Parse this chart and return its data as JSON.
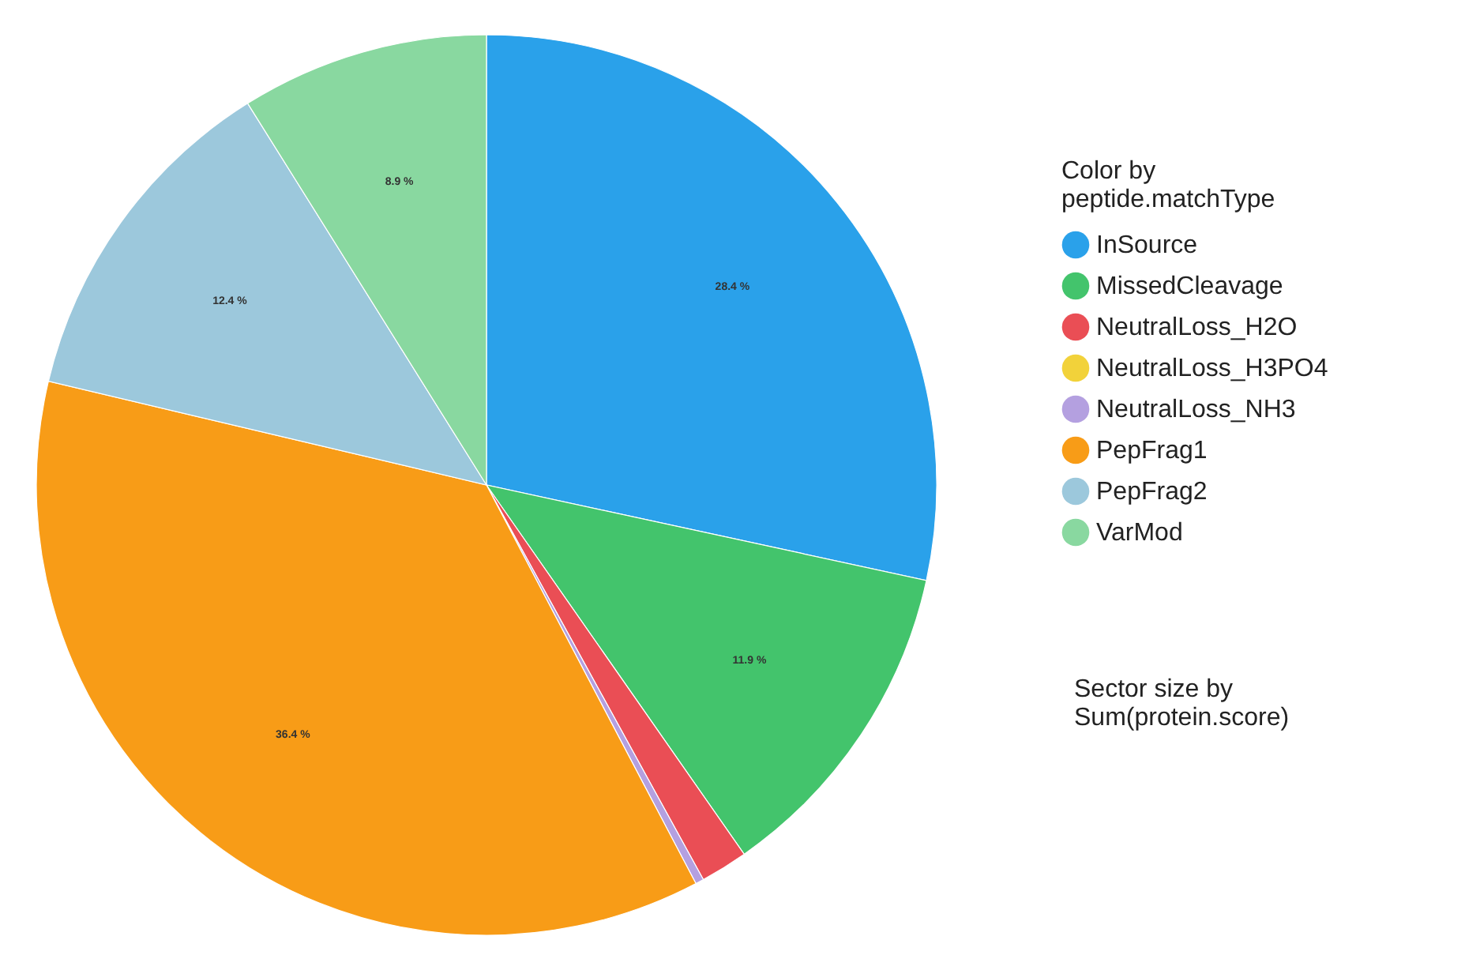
{
  "chart_data": {
    "type": "pie",
    "legend_title": "Color by\npeptide.matchType",
    "legend": "right",
    "categories": [
      "InSource",
      "MissedCleavage",
      "NeutralLoss_H2O",
      "NeutralLoss_H3PO4",
      "NeutralLoss_NH3",
      "PepFrag1",
      "PepFrag2",
      "VarMod"
    ],
    "values": [
      28.4,
      11.9,
      1.7,
      0,
      0.3,
      36.4,
      12.4,
      8.9
    ],
    "value_labels": [
      "28.4 %",
      "11.9 %",
      null,
      null,
      null,
      "36.4 %",
      "12.4 %",
      "8.9 %"
    ],
    "colors": [
      "#2aa1ea",
      "#43c46c",
      "#ea4e55",
      "#f2d23a",
      "#b4a0e0",
      "#f89c17",
      "#9cc8dc",
      "#89d8a0"
    ],
    "annotations": [
      "Sector size by\nSum(protein.score)"
    ]
  }
}
